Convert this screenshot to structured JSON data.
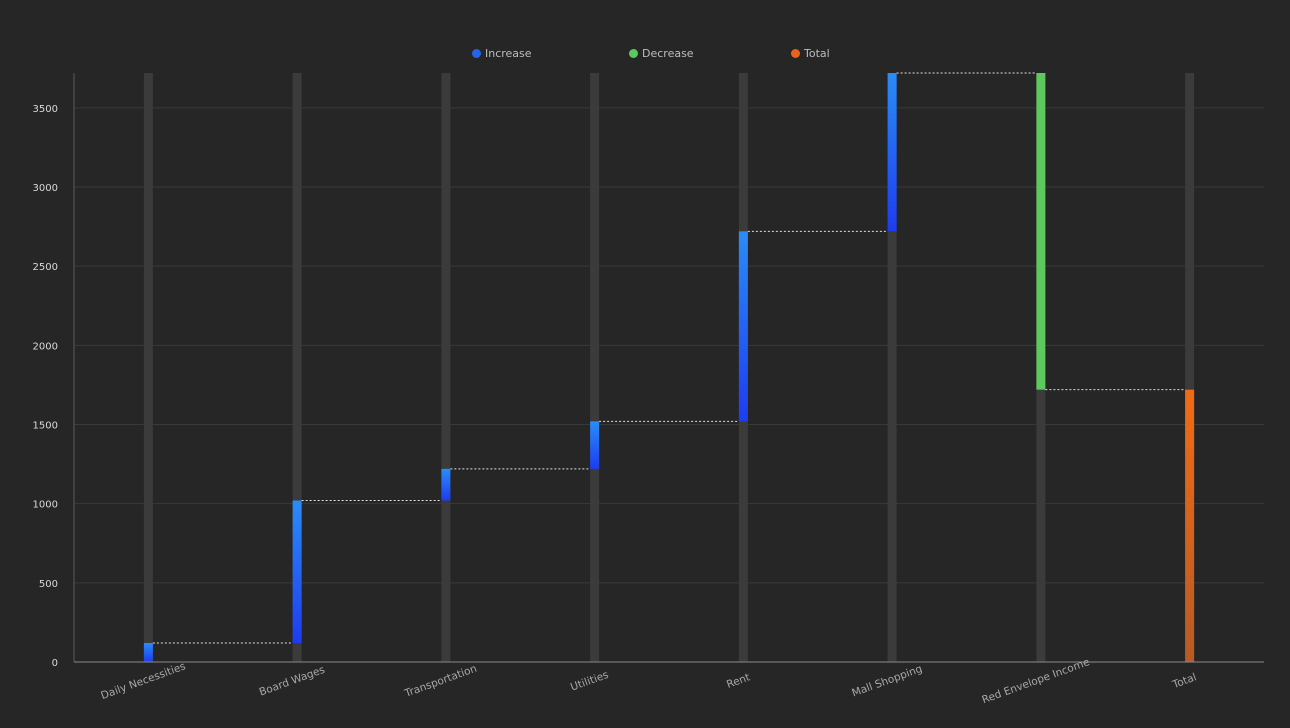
{
  "chart_data": {
    "type": "bar",
    "subtype": "waterfall",
    "categories": [
      "Daily Necessities",
      "Board Wages",
      "Transportation",
      "Utilities",
      "Rent",
      "Mall Shopping",
      "Red Envelope Income",
      "Total"
    ],
    "series": [
      {
        "name": "Increase",
        "values": [
          120,
          900,
          200,
          300,
          1200,
          1000,
          0,
          0
        ]
      },
      {
        "name": "Decrease",
        "values": [
          0,
          0,
          0,
          0,
          0,
          0,
          2000,
          0
        ]
      },
      {
        "name": "Total",
        "values": [
          0,
          0,
          0,
          0,
          0,
          0,
          0,
          1720
        ]
      }
    ],
    "base": [
      0,
      120,
      1020,
      1220,
      1520,
      2720,
      1720,
      0
    ],
    "ylim": [
      0,
      3720
    ],
    "yticks": [
      0,
      500,
      1000,
      1500,
      2000,
      2500,
      3000,
      3500
    ],
    "ytick_labels": [
      "0",
      "500",
      "1000",
      "1500",
      "2000",
      "2500",
      "3000",
      "3500"
    ],
    "grid": true,
    "legend_position": "top-center",
    "colors": {
      "increase_top": "#2a8cf7",
      "increase_bottom": "#1e3cf0",
      "decrease": "#5cc85e",
      "total_top": "#f26b14",
      "total_bottom": "#b85a25",
      "track": "#3b3b3b",
      "grid": "#3a3a3a",
      "axis_text": "#d9d9d9",
      "connector": "#ffffff"
    }
  },
  "legend": [
    {
      "label": "Increase",
      "color": "#2563eb"
    },
    {
      "label": "Decrease",
      "color": "#5cc85e"
    },
    {
      "label": "Total",
      "color": "#e8641b"
    }
  ]
}
